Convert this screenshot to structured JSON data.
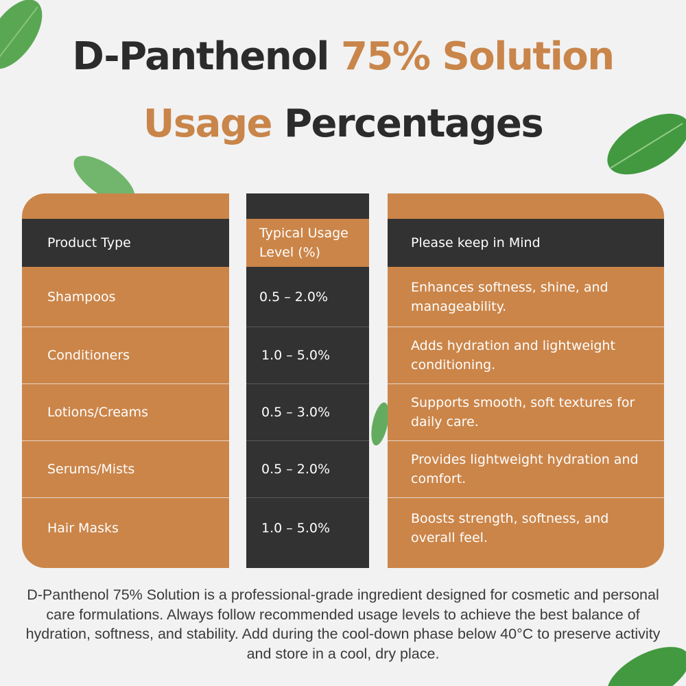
{
  "title": {
    "line1_dark": "D-Panthenol ",
    "line1_accent": "75% Solution",
    "line2_accent": "Usage",
    "line2_dark": " Percentages"
  },
  "table": {
    "headers": {
      "product_type": "Product Type",
      "usage_level": "Typical Usage Level (%)",
      "keep_in_mind": "Please keep in Mind"
    },
    "rows": [
      {
        "product": "Shampoos",
        "level": "0.5 – 2.0%",
        "note": "Enhances softness, shine, and manageability."
      },
      {
        "product": "Conditioners",
        "level": "1.0 – 5.0%",
        "note": "Adds hydration and lightweight conditioning."
      },
      {
        "product": "Lotions/Creams",
        "level": "0.5 – 3.0%",
        "note": "Supports smooth, soft textures for daily care."
      },
      {
        "product": "Serums/Mists",
        "level": "0.5 – 2.0%",
        "note": "Provides lightweight hydration and comfort."
      },
      {
        "product": "Hair Masks",
        "level": "1.0 – 5.0%",
        "note": "Boosts strength, softness, and overall feel."
      }
    ]
  },
  "footer_note": "D-Panthenol 75% Solution is a professional-grade ingredient designed for cosmetic and personal care formulations. Always follow recommended usage levels to achieve the best balance of hydration, softness, and stability. Add during the cool-down phase below 40°C to preserve activity and store in a cool, dry place.",
  "colors": {
    "accent": "#cb8549",
    "dark": "#323232",
    "background": "#f2f2f2",
    "leaf": "#3f9a3a"
  },
  "icons": [
    "leaf-icon"
  ]
}
